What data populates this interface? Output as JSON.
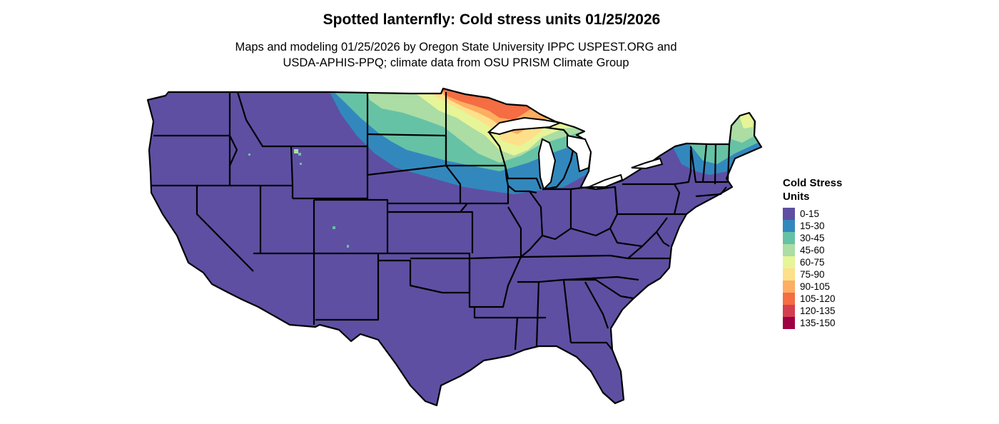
{
  "title": "Spotted lanternfly: Cold stress units 01/25/2026",
  "subtitle_line1": "Maps and modeling 01/25/2026 by Oregon State University IPPC USPEST.ORG and",
  "subtitle_line2": "USDA-APHIS-PPQ; climate data from OSU PRISM Climate Group",
  "legend": {
    "title_line1": "Cold Stress",
    "title_line2": "Units",
    "items": [
      {
        "label": "0-15",
        "color": "#5E4FA2"
      },
      {
        "label": "15-30",
        "color": "#3288BD"
      },
      {
        "label": "30-45",
        "color": "#66C2A5"
      },
      {
        "label": "45-60",
        "color": "#ABDDA4"
      },
      {
        "label": "60-75",
        "color": "#E6F598"
      },
      {
        "label": "75-90",
        "color": "#FEE08B"
      },
      {
        "label": "90-105",
        "color": "#FDAE61"
      },
      {
        "label": "105-120",
        "color": "#F46D43"
      },
      {
        "label": "120-135",
        "color": "#D53E4F"
      },
      {
        "label": "135-150",
        "color": "#9E0142"
      }
    ]
  }
}
